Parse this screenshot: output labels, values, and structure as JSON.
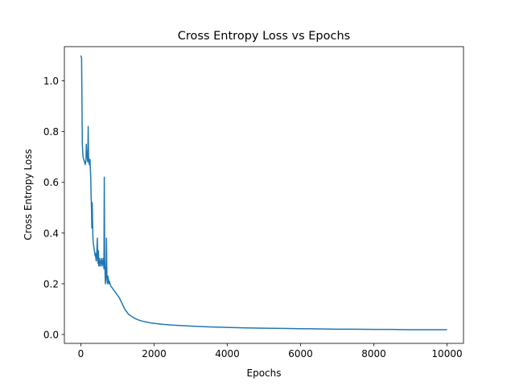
{
  "chart_data": {
    "type": "line",
    "title": "Cross Entropy Loss vs Epochs",
    "xlabel": "Epochs",
    "ylabel": "Cross Entropy Loss",
    "xlim": [
      -450,
      10450
    ],
    "ylim": [
      -0.035,
      1.135
    ],
    "x_ticks": [
      0,
      2000,
      4000,
      6000,
      8000,
      10000
    ],
    "y_ticks": [
      0.0,
      0.2,
      0.4,
      0.6,
      0.8,
      1.0
    ],
    "x_tick_labels": [
      "0",
      "2000",
      "4000",
      "6000",
      "8000",
      "10000"
    ],
    "y_tick_labels": [
      "0.0",
      "0.2",
      "0.4",
      "0.6",
      "0.8",
      "1.0"
    ],
    "grid": false,
    "legend": "none",
    "color": "#1f77b4",
    "series": [
      {
        "x": [
          0,
          20,
          40,
          60,
          80,
          100,
          120,
          140,
          150,
          160,
          170,
          180,
          190,
          200,
          210,
          220,
          230,
          240,
          250,
          260,
          270,
          280,
          290,
          300,
          310,
          320,
          330,
          340,
          350,
          360,
          370,
          380,
          390,
          400,
          410,
          420,
          430,
          440,
          450,
          460,
          470,
          480,
          490,
          500,
          510,
          520,
          530,
          540,
          550,
          560,
          570,
          580,
          590,
          600,
          610,
          620,
          630,
          640,
          650,
          660,
          670,
          680,
          690,
          700,
          710,
          720,
          730,
          740,
          750,
          760,
          770,
          780,
          790,
          800,
          820,
          850,
          900,
          950,
          1000,
          1050,
          1100,
          1150,
          1200,
          1250,
          1300,
          1350,
          1400,
          1500,
          1600,
          1700,
          1800,
          1900,
          2000,
          2250,
          2500,
          2750,
          3000,
          3500,
          4000,
          4500,
          5000,
          5500,
          6000,
          6500,
          7000,
          7500,
          8000,
          8500,
          9000,
          9500,
          10000
        ],
        "y": [
          1.1,
          1.09,
          0.75,
          0.7,
          0.69,
          0.68,
          0.67,
          0.69,
          0.75,
          0.7,
          0.72,
          0.69,
          0.68,
          0.82,
          0.7,
          0.69,
          0.67,
          0.68,
          0.69,
          0.65,
          0.62,
          0.55,
          0.5,
          0.42,
          0.52,
          0.45,
          0.38,
          0.36,
          0.35,
          0.34,
          0.33,
          0.32,
          0.31,
          0.32,
          0.3,
          0.29,
          0.3,
          0.34,
          0.38,
          0.31,
          0.28,
          0.33,
          0.27,
          0.29,
          0.3,
          0.28,
          0.27,
          0.29,
          0.28,
          0.3,
          0.28,
          0.27,
          0.28,
          0.29,
          0.3,
          0.28,
          0.26,
          0.62,
          0.3,
          0.25,
          0.2,
          0.22,
          0.25,
          0.38,
          0.24,
          0.21,
          0.2,
          0.23,
          0.22,
          0.21,
          0.2,
          0.21,
          0.2,
          0.2,
          0.19,
          0.185,
          0.175,
          0.165,
          0.155,
          0.145,
          0.13,
          0.115,
          0.1,
          0.09,
          0.08,
          0.075,
          0.07,
          0.062,
          0.056,
          0.052,
          0.049,
          0.046,
          0.044,
          0.04,
          0.037,
          0.035,
          0.033,
          0.03,
          0.028,
          0.026,
          0.025,
          0.024,
          0.023,
          0.022,
          0.021,
          0.021,
          0.02,
          0.02,
          0.019,
          0.019,
          0.019
        ]
      }
    ]
  }
}
